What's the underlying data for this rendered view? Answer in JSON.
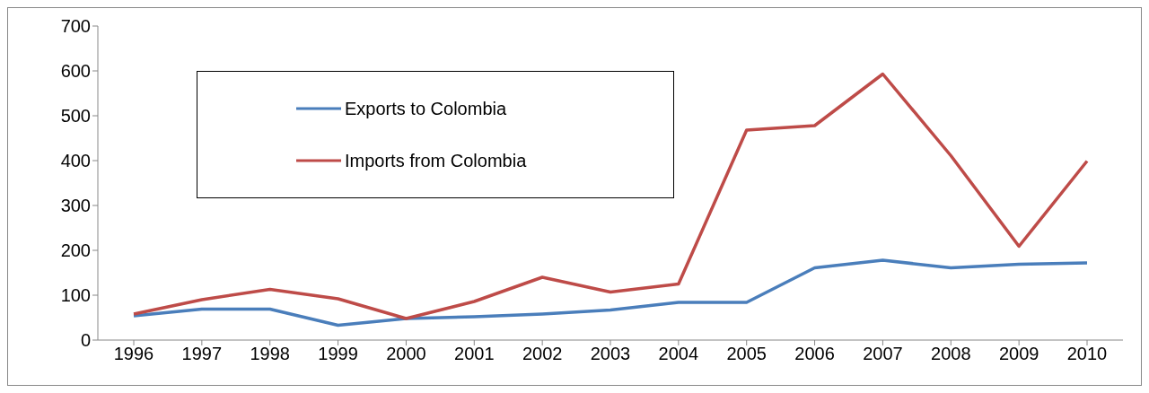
{
  "chart_data": {
    "type": "line",
    "categories": [
      "1996",
      "1997",
      "1998",
      "1999",
      "2000",
      "2001",
      "2002",
      "2003",
      "2004",
      "2005",
      "2006",
      "2007",
      "2008",
      "2009",
      "2010"
    ],
    "series": [
      {
        "name": "Exports to Colombia",
        "color": "#4a7ebb",
        "values": [
          54,
          69,
          69,
          33,
          48,
          52,
          58,
          67,
          84,
          84,
          161,
          178,
          161,
          169,
          172
        ]
      },
      {
        "name": "Imports from Colombia",
        "color": "#be4b48",
        "values": [
          58,
          90,
          113,
          92,
          48,
          86,
          140,
          107,
          125,
          468,
          478,
          593,
          411,
          209,
          399
        ]
      }
    ],
    "ylim": [
      0,
      700
    ],
    "yticks": [
      0,
      100,
      200,
      300,
      400,
      500,
      600,
      700
    ],
    "grid": false,
    "legend": "top left",
    "marker": "none",
    "line_style": "solid"
  }
}
